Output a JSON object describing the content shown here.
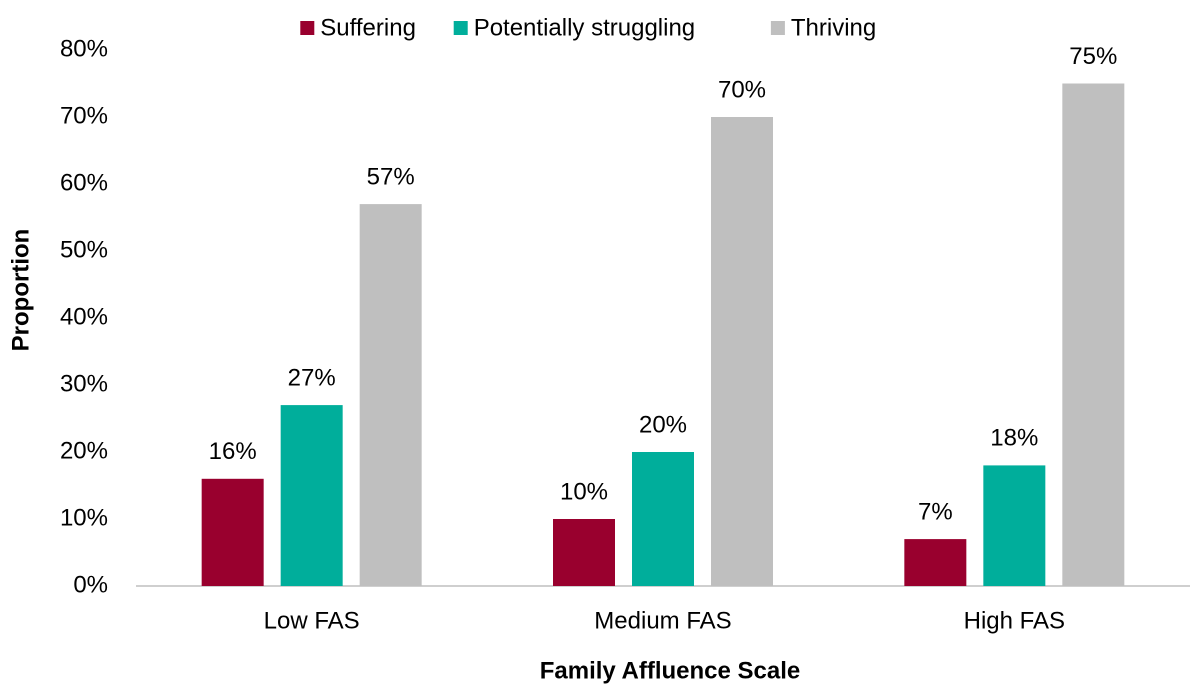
{
  "chart_data": {
    "type": "bar",
    "x_label": "Family Affluence Scale",
    "y_label": "Proportion",
    "categories": [
      "Low FAS",
      "Medium FAS",
      "High FAS"
    ],
    "series": [
      {
        "name": "Suffering",
        "color": "#99002e",
        "values": [
          16,
          10,
          7
        ],
        "value_labels": [
          "16%",
          "10%",
          "7%"
        ]
      },
      {
        "name": "Potentially struggling",
        "color": "#00ae9b",
        "values": [
          27,
          20,
          18
        ],
        "value_labels": [
          "27%",
          "20%",
          "18%"
        ]
      },
      {
        "name": "Thriving",
        "color": "#bfbfbf",
        "values": [
          57,
          70,
          75
        ],
        "value_labels": [
          "57%",
          "70%",
          "75%"
        ]
      }
    ],
    "ylim": [
      0,
      80
    ],
    "yticks": [
      {
        "value": 0,
        "label": "0%"
      },
      {
        "value": 10,
        "label": "10%"
      },
      {
        "value": 20,
        "label": "20%"
      },
      {
        "value": 30,
        "label": "30%"
      },
      {
        "value": 40,
        "label": "40%"
      },
      {
        "value": 50,
        "label": "50%"
      },
      {
        "value": 60,
        "label": "60%"
      },
      {
        "value": 70,
        "label": "70%"
      },
      {
        "value": 80,
        "label": "80%"
      }
    ],
    "legend": "top",
    "grid": false
  }
}
